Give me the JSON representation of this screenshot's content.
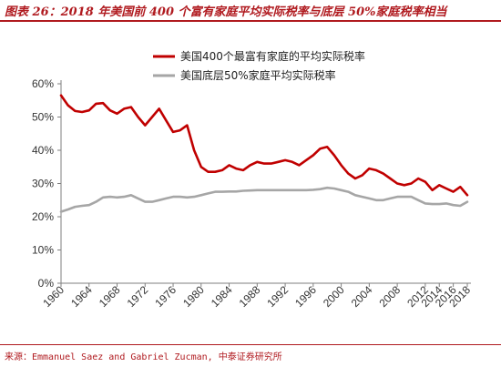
{
  "header": {
    "title": "图表 26：2018 年美国前 400 个富有家庭平均实际税率与底层 50%家庭税率相当"
  },
  "footer": {
    "source": "来源：Emmanuel Saez and Gabriel Zucman, 中泰证券研究所"
  },
  "colors": {
    "accent": "#b01a1f",
    "series1": "#c00000",
    "series2": "#a6a6a6"
  },
  "chart_data": {
    "type": "line",
    "title": "",
    "xlabel": "",
    "ylabel": "",
    "xlim": [
      1960,
      2018
    ],
    "ylim": [
      0,
      60
    ],
    "yticks": [
      0,
      10,
      20,
      30,
      40,
      50,
      60
    ],
    "ytick_labels": [
      "0%",
      "10%",
      "20%",
      "30%",
      "40%",
      "50%",
      "60%"
    ],
    "xticks": [
      1960,
      1964,
      1968,
      1972,
      1976,
      1980,
      1984,
      1988,
      1992,
      1996,
      2000,
      2004,
      2008,
      2012,
      2014,
      2016,
      2018
    ],
    "xtick_labels": [
      "1960",
      "1964",
      "1968",
      "1972",
      "1976",
      "1980",
      "1984",
      "1988",
      "1992",
      "1996",
      "2000",
      "2004",
      "2008",
      "2012",
      "2014",
      "2016",
      "2018"
    ],
    "grid": false,
    "legend": "top-right",
    "x": [
      1960,
      1961,
      1962,
      1963,
      1964,
      1965,
      1966,
      1967,
      1968,
      1969,
      1970,
      1971,
      1972,
      1973,
      1974,
      1975,
      1976,
      1977,
      1978,
      1979,
      1980,
      1981,
      1982,
      1983,
      1984,
      1985,
      1986,
      1987,
      1988,
      1989,
      1990,
      1991,
      1992,
      1993,
      1994,
      1995,
      1996,
      1997,
      1998,
      1999,
      2000,
      2001,
      2002,
      2003,
      2004,
      2005,
      2006,
      2007,
      2008,
      2009,
      2010,
      2011,
      2012,
      2013,
      2014,
      2015,
      2016,
      2017,
      2018
    ],
    "series": [
      {
        "name": "美国400个最富有家庭的平均实际税率",
        "color": "#c00000",
        "values": [
          56.5,
          53.5,
          51.8,
          51.5,
          52,
          54,
          54.2,
          52,
          51,
          52.5,
          53,
          50,
          47.5,
          50,
          52.5,
          49,
          45.5,
          46,
          47.5,
          40,
          35,
          33.5,
          33.5,
          34,
          35.5,
          34.5,
          34,
          35.5,
          36.5,
          36,
          36,
          36.5,
          37,
          36.5,
          35.5,
          37,
          38.5,
          40.5,
          41,
          38.5,
          35.5,
          33,
          31.5,
          32.5,
          34.5,
          34,
          33,
          31.5,
          30,
          29.5,
          30,
          31.5,
          30.5,
          28,
          29.5,
          28.5,
          27.5,
          29,
          26.5
        ]
      },
      {
        "name": "美国底层50%家庭平均实际税率",
        "color": "#a6a6a6",
        "values": [
          21.5,
          22.2,
          23,
          23.3,
          23.5,
          24.5,
          25.8,
          26,
          25.8,
          26,
          26.5,
          25.5,
          24.5,
          24.5,
          25,
          25.5,
          26,
          26,
          25.8,
          26,
          26.5,
          27,
          27.5,
          27.5,
          27.6,
          27.6,
          27.8,
          27.9,
          28,
          28,
          28,
          28,
          28,
          28,
          28,
          28,
          28.1,
          28.3,
          28.7,
          28.5,
          28,
          27.5,
          26.5,
          26,
          25.5,
          25,
          25,
          25.5,
          26,
          26,
          26,
          25,
          24,
          23.8,
          23.8,
          24,
          23.5,
          23.3,
          24.5
        ]
      }
    ]
  }
}
